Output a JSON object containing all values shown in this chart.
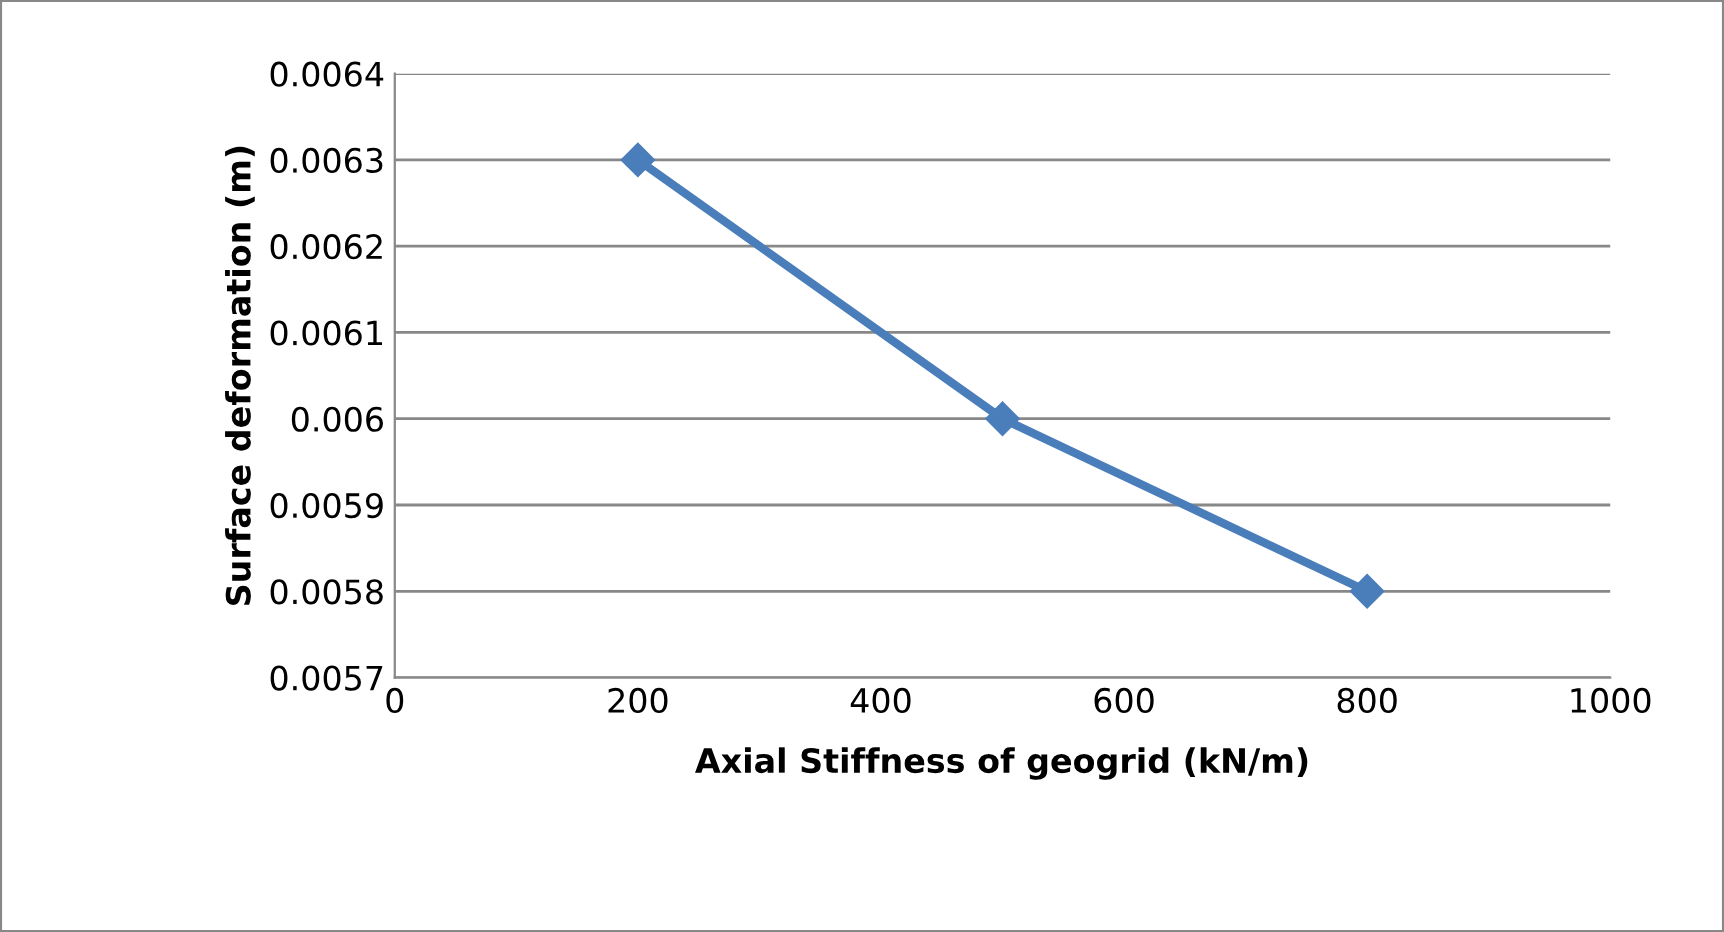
{
  "chart_data": {
    "type": "line",
    "xlabel": "Axial Stiffness of geogrid (kN/m)",
    "ylabel": "Surface deformation (m)",
    "x": [
      200,
      500,
      800
    ],
    "series": [
      {
        "color": "#4a7ebb",
        "values": [
          0.0063,
          0.006,
          0.0058
        ]
      }
    ],
    "xlim": [
      0,
      1000
    ],
    "xticks": [
      0,
      200,
      400,
      600,
      800,
      1000
    ],
    "ylim": [
      0.0057,
      0.0064
    ],
    "yticks": [
      0.0057,
      0.0058,
      0.0059,
      0.006,
      0.0061,
      0.0062,
      0.0063,
      0.0064
    ],
    "grid": "y",
    "marker": "diamond",
    "line_style": "solid",
    "legend": false
  }
}
